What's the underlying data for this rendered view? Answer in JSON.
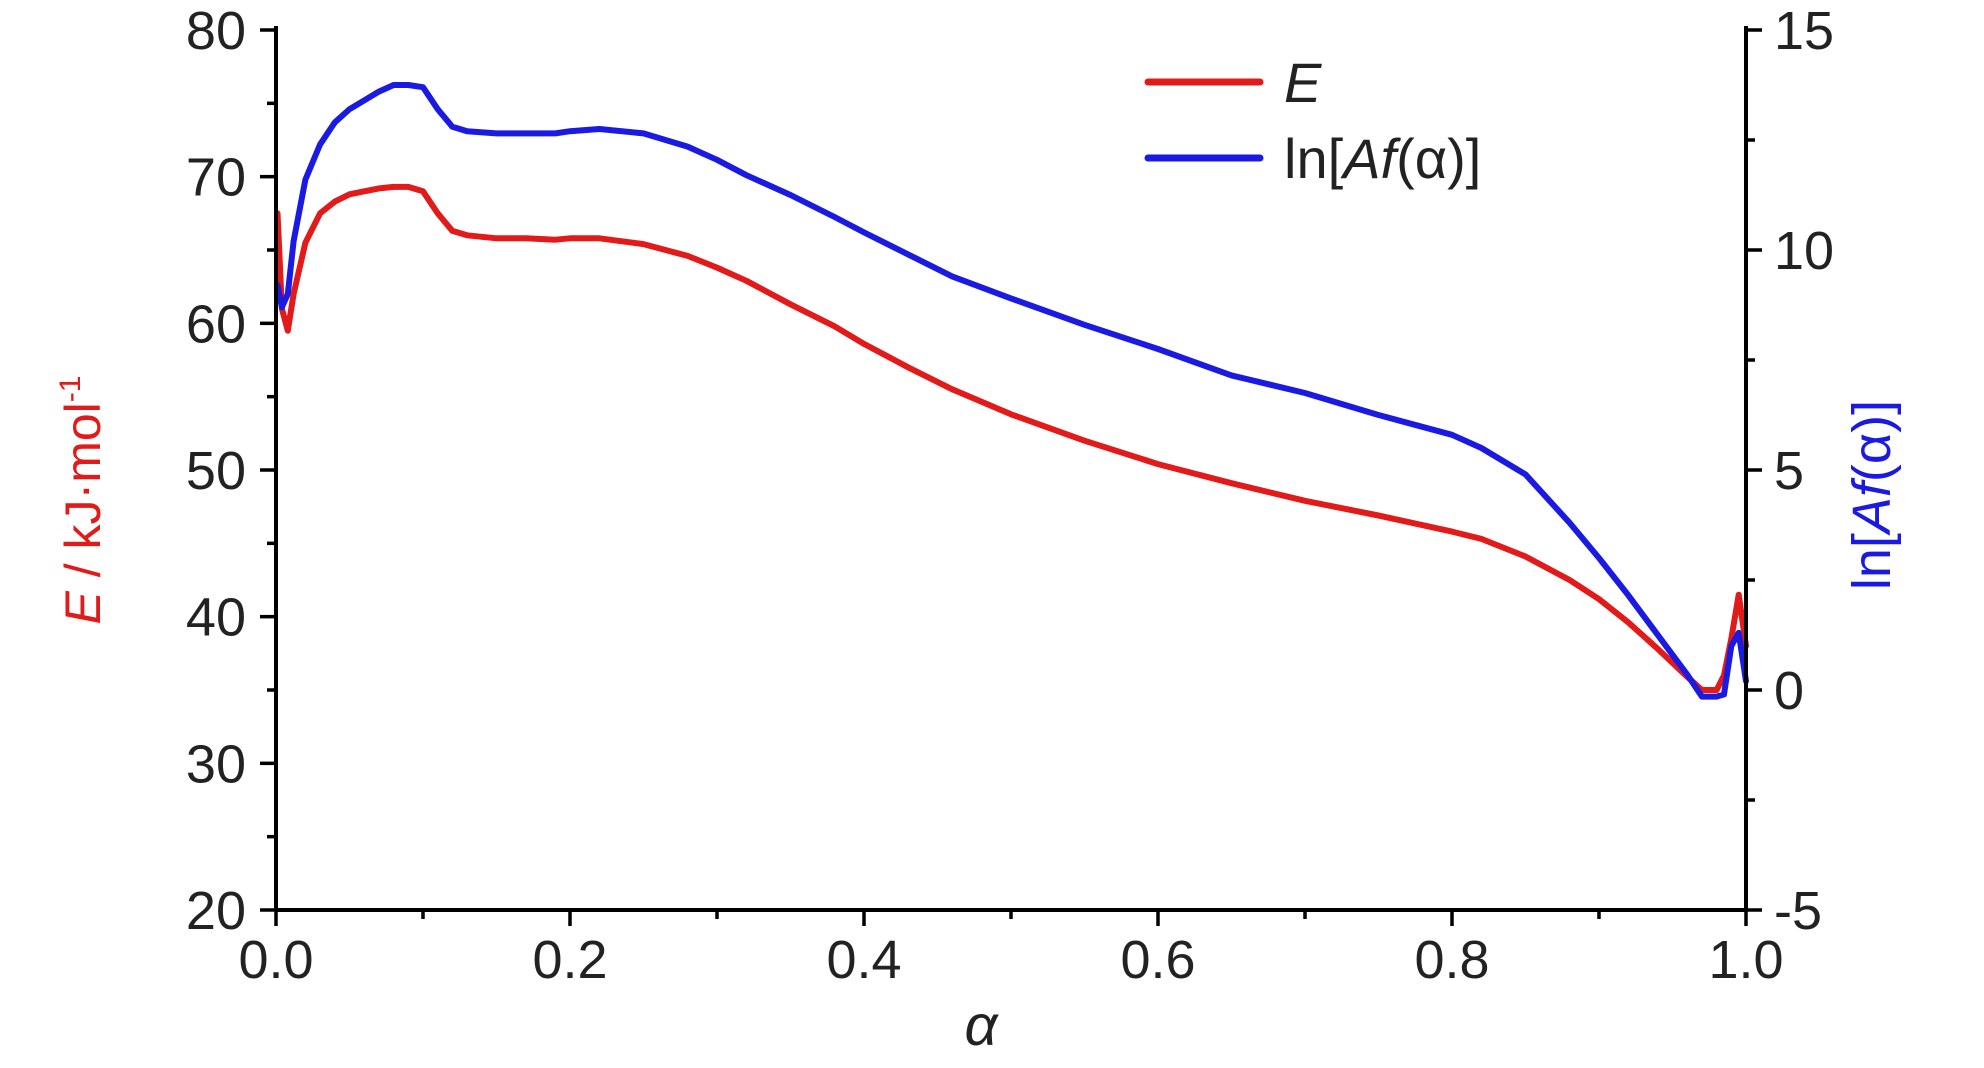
{
  "chart_data": {
    "type": "line",
    "xlabel": "α",
    "xlim": [
      0.0,
      1.0
    ],
    "x_ticks": [
      "0.0",
      "0.2",
      "0.4",
      "0.6",
      "0.8",
      "1.0"
    ],
    "y_left": {
      "label_italic": "E",
      "label_rest": " / kJ·mol",
      "label_sup": "-1",
      "lim": [
        20,
        80
      ],
      "ticks": [
        "20",
        "30",
        "40",
        "50",
        "60",
        "70",
        "80"
      ],
      "color": "#e21a1a"
    },
    "y_right": {
      "label_pre": "ln[",
      "label_italic": "Af",
      "label_post": "(α)]",
      "lim": [
        -5,
        15
      ],
      "ticks": [
        "-5",
        "0",
        "5",
        "10",
        "15"
      ],
      "color": "#1a1ae2"
    },
    "legend": {
      "position": "top-right",
      "entries": [
        {
          "series": "E",
          "parts": [
            {
              "text": "E",
              "italic": true
            }
          ]
        },
        {
          "series": "lnAf",
          "parts": [
            {
              "text": "ln[",
              "italic": false
            },
            {
              "text": "Af",
              "italic": true
            },
            {
              "text": "(α)]",
              "italic": false
            }
          ]
        }
      ]
    },
    "series": [
      {
        "id": "E",
        "name": "E",
        "axis": "left",
        "color": "#e21a1a",
        "x": [
          0.001,
          0.004,
          0.008,
          0.012,
          0.02,
          0.03,
          0.04,
          0.05,
          0.06,
          0.07,
          0.08,
          0.09,
          0.1,
          0.11,
          0.12,
          0.13,
          0.15,
          0.17,
          0.19,
          0.2,
          0.22,
          0.25,
          0.28,
          0.3,
          0.32,
          0.35,
          0.38,
          0.4,
          0.43,
          0.46,
          0.5,
          0.55,
          0.6,
          0.65,
          0.7,
          0.75,
          0.8,
          0.82,
          0.85,
          0.88,
          0.9,
          0.92,
          0.94,
          0.96,
          0.97,
          0.98,
          0.985,
          0.99,
          0.995,
          1.0
        ],
        "y": [
          67.5,
          61.0,
          59.5,
          62.0,
          65.5,
          67.5,
          68.3,
          68.8,
          69.0,
          69.2,
          69.3,
          69.3,
          69.0,
          67.5,
          66.3,
          66.0,
          65.8,
          65.8,
          65.7,
          65.8,
          65.8,
          65.4,
          64.6,
          63.8,
          62.9,
          61.3,
          59.8,
          58.6,
          57.0,
          55.5,
          53.8,
          52.0,
          50.4,
          49.1,
          47.9,
          46.9,
          45.8,
          45.3,
          44.1,
          42.5,
          41.2,
          39.6,
          37.8,
          35.9,
          35.0,
          35.0,
          36.0,
          38.5,
          41.5,
          38.0
        ]
      },
      {
        "id": "lnAf",
        "name": "ln[Af(α)]",
        "axis": "right",
        "color": "#1a1ae2",
        "x": [
          0.001,
          0.004,
          0.008,
          0.012,
          0.02,
          0.03,
          0.04,
          0.05,
          0.06,
          0.07,
          0.08,
          0.09,
          0.1,
          0.11,
          0.12,
          0.13,
          0.15,
          0.17,
          0.19,
          0.2,
          0.22,
          0.25,
          0.28,
          0.3,
          0.32,
          0.35,
          0.38,
          0.4,
          0.43,
          0.46,
          0.5,
          0.55,
          0.6,
          0.65,
          0.7,
          0.75,
          0.8,
          0.82,
          0.85,
          0.88,
          0.9,
          0.92,
          0.94,
          0.96,
          0.97,
          0.98,
          0.985,
          0.99,
          0.995,
          1.0
        ],
        "y": [
          9.2,
          8.7,
          9.0,
          10.2,
          11.6,
          12.4,
          12.9,
          13.2,
          13.4,
          13.6,
          13.75,
          13.75,
          13.7,
          13.2,
          12.8,
          12.7,
          12.65,
          12.65,
          12.65,
          12.7,
          12.75,
          12.65,
          12.35,
          12.05,
          11.7,
          11.25,
          10.75,
          10.4,
          9.9,
          9.4,
          8.9,
          8.3,
          7.75,
          7.15,
          6.75,
          6.25,
          5.8,
          5.5,
          4.9,
          3.8,
          3.0,
          2.15,
          1.25,
          0.35,
          -0.15,
          -0.15,
          -0.1,
          1.0,
          1.3,
          0.2
        ]
      }
    ]
  }
}
